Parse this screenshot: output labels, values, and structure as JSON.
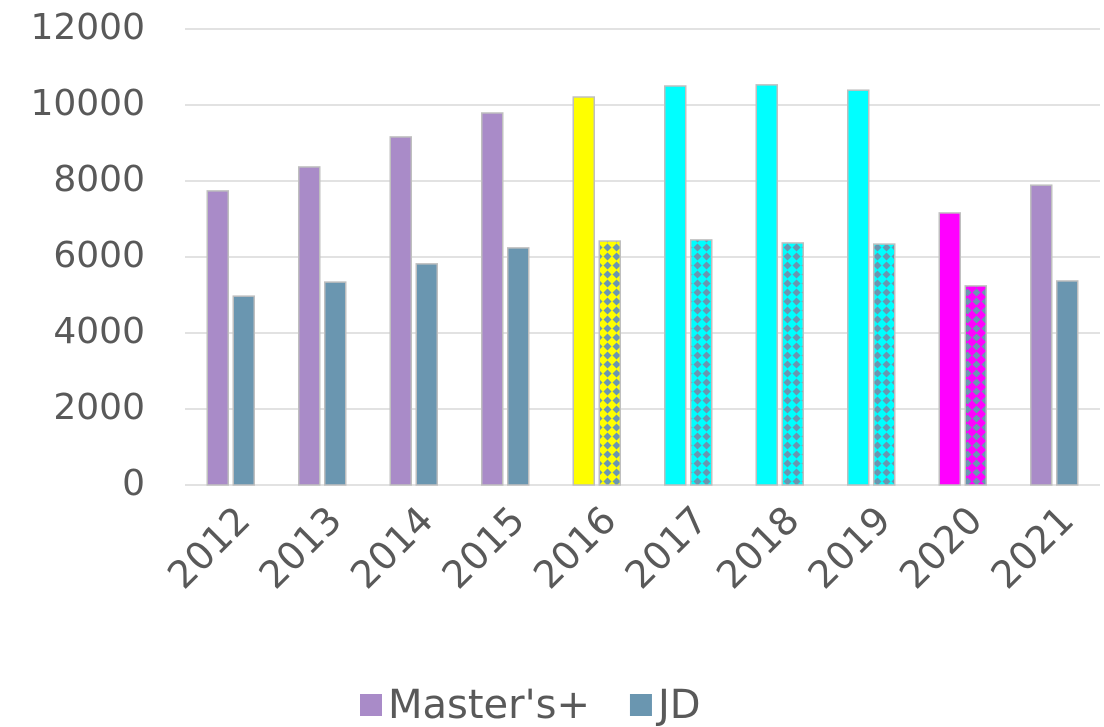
{
  "chart_data": {
    "type": "bar",
    "categories": [
      "2012",
      "2013",
      "2014",
      "2015",
      "2016",
      "2017",
      "2018",
      "2019",
      "2020",
      "2021"
    ],
    "series": [
      {
        "name": "Master's+",
        "color": "#a98bc8",
        "values": [
          7740,
          8370,
          9160,
          9790,
          10210,
          10500,
          10530,
          10390,
          7160,
          7890
        ],
        "point_colors": [
          null,
          null,
          null,
          null,
          "#ffff00",
          "#00ffff",
          "#00ffff",
          "#00ffff",
          "#ff00ff",
          null
        ]
      },
      {
        "name": "JD",
        "color": "#6a96b0",
        "values": [
          4970,
          5340,
          5820,
          6240,
          6420,
          6450,
          6370,
          6340,
          5240,
          5370
        ],
        "point_colors": [
          null,
          null,
          null,
          null,
          "#ffff00",
          "#00ffff",
          "#00ffff",
          "#00ffff",
          "#ff00ff",
          null
        ],
        "pattern": true
      }
    ],
    "ylim": [
      0,
      12000
    ],
    "yticks": [
      0,
      2000,
      4000,
      6000,
      8000,
      10000,
      12000
    ],
    "grid": true,
    "legend": "bottom"
  }
}
